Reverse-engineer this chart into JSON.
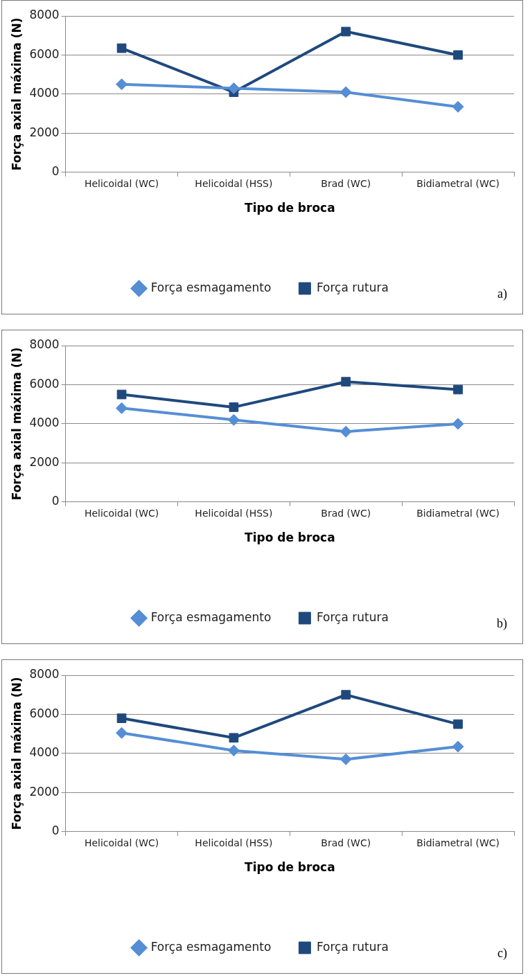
{
  "chart_data": [
    {
      "type": "line",
      "xlabel": "Tipo de broca",
      "ylabel": "Força axial máxima (N)",
      "categories": [
        "Helicoidal (WC)",
        "Helicoidal (HSS)",
        "Brad (WC)",
        "Bidiametral (WC)"
      ],
      "series": [
        {
          "name": "Força esmagamento",
          "color": "#558ed5",
          "marker": "diamond",
          "values": [
            4500,
            4300,
            4100,
            3350
          ]
        },
        {
          "name": "Força rutura",
          "color": "#1f497d",
          "marker": "square",
          "values": [
            6350,
            4100,
            7200,
            6000
          ]
        }
      ],
      "ylim": [
        0,
        8000
      ],
      "yticks": [
        0,
        2000,
        4000,
        6000,
        8000
      ],
      "grid": "y",
      "legend": "bottom",
      "line_style": "solid",
      "annotations": [
        "a)"
      ]
    },
    {
      "type": "line",
      "xlabel": "Tipo de broca",
      "ylabel": "Força axial máxima (N)",
      "categories": [
        "Helicoidal (WC)",
        "Helicoidal (HSS)",
        "Brad (WC)",
        "Bidiametral (WC)"
      ],
      "series": [
        {
          "name": "Força esmagamento",
          "color": "#558ed5",
          "marker": "diamond",
          "values": [
            4800,
            4200,
            3600,
            4000
          ]
        },
        {
          "name": "Força rutura",
          "color": "#1f497d",
          "marker": "square",
          "values": [
            5500,
            4850,
            6150,
            5750
          ]
        }
      ],
      "ylim": [
        0,
        8000
      ],
      "yticks": [
        0,
        2000,
        4000,
        6000,
        8000
      ],
      "grid": "y",
      "legend": "bottom",
      "line_style": "solid",
      "annotations": [
        "b)"
      ]
    },
    {
      "type": "line",
      "xlabel": "Tipo de broca",
      "ylabel": "Força axial máxima (N)",
      "categories": [
        "Helicoidal (WC)",
        "Helicoidal (HSS)",
        "Brad (WC)",
        "Bidiametral (WC)"
      ],
      "series": [
        {
          "name": "Força esmagamento",
          "color": "#558ed5",
          "marker": "diamond",
          "values": [
            5050,
            4150,
            3700,
            4350
          ]
        },
        {
          "name": "Força rutura",
          "color": "#1f497d",
          "marker": "square",
          "values": [
            5800,
            4800,
            7000,
            5500
          ]
        }
      ],
      "ylim": [
        0,
        8000
      ],
      "yticks": [
        0,
        2000,
        4000,
        6000,
        8000
      ],
      "grid": "y",
      "legend": "bottom",
      "line_style": "solid",
      "annotations": [
        "c)"
      ]
    }
  ]
}
